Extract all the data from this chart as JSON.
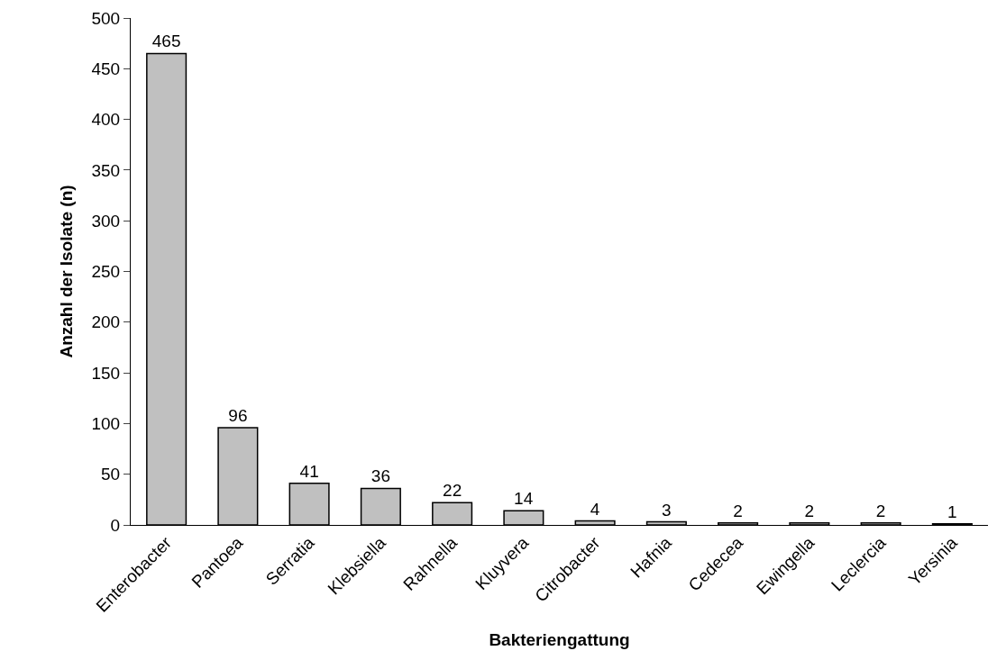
{
  "chart_data": {
    "type": "bar",
    "xlabel": "Bakteriengattung",
    "ylabel": "Anzahl der Isolate (n)",
    "categories": [
      "Enterobacter",
      "Pantoea",
      "Serratia",
      "Klebsiella",
      "Rahnella",
      "Kluyvera",
      "Citrobacter",
      "Hafnia",
      "Cedecea",
      "Ewingella",
      "Leclercia",
      "Yersinia"
    ],
    "values": [
      465,
      96,
      41,
      36,
      22,
      14,
      4,
      3,
      2,
      2,
      2,
      1
    ],
    "color": "#c0c0c0",
    "ylim": [
      0,
      500
    ],
    "yticks": [
      0,
      50,
      100,
      150,
      200,
      250,
      300,
      350,
      400,
      450,
      500
    ],
    "grid": false,
    "data_labels": true,
    "legend": false
  }
}
